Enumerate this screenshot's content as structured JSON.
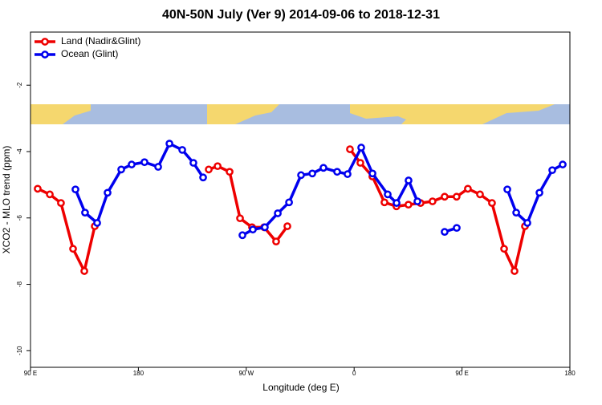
{
  "chart_data": {
    "type": "line",
    "title": "40N-50N July (Ver 9)   2014-09-06 to 2018-12-31",
    "xlabel": "Longitude (deg E)",
    "ylabel": "XCO2 - MLO trend (ppm)",
    "xlim": [
      90,
      540
    ],
    "ylim": [
      -10.5,
      -0.4
    ],
    "xticks": [
      {
        "value": 90,
        "label": "90 E"
      },
      180,
      {
        "value": 270,
        "label": "90 W"
      },
      {
        "value": 360,
        "label": "0"
      },
      {
        "value": 450,
        "label": "90 E"
      },
      {
        "value": 540,
        "label": "180"
      }
    ],
    "yticks": [
      -10,
      -8,
      -6,
      -4,
      -2
    ],
    "legend": "top-left",
    "series": [
      {
        "name": "Land (Nadir&Glint)",
        "color": "#ee0000",
        "x": [
          96.0,
          106.1,
          115.4,
          125.5,
          134.9,
          143.6,
          null,
          238.7,
          246.1,
          256.1,
          264.8,
          274.8,
          284.9,
          294.9,
          304.3,
          null,
          356.5,
          365.2,
          375.2,
          385.3,
          395.3,
          405.3,
          415.4,
          425.4,
          435.5,
          445.5,
          454.9,
          465.0,
          475.0,
          485.1,
          493.8,
          502.5
        ],
        "values": [
          -5.12,
          -5.29,
          -5.55,
          -6.93,
          -7.6,
          -6.25,
          null,
          -4.54,
          -4.44,
          -4.61,
          -6.01,
          -6.28,
          -6.28,
          -6.71,
          -6.25,
          null,
          -3.93,
          -4.34,
          -4.75,
          -5.53,
          -5.65,
          -5.6,
          -5.55,
          -5.5,
          -5.36,
          -5.36,
          -5.12,
          -5.29,
          -5.55,
          -6.93,
          -7.6,
          -6.25
        ]
      },
      {
        "name": "Ocean (Glint)",
        "color": "#0000ee",
        "x": [
          127.5,
          135.5,
          145.6,
          154.3,
          165.7,
          174.4,
          185.1,
          196.5,
          205.9,
          216.6,
          225.9,
          234.0,
          null,
          266.8,
          275.5,
          285.5,
          296.3,
          305.7,
          315.7,
          325.1,
          334.4,
          345.8,
          354.5,
          365.9,
          375.3,
          388.0,
          395.4,
          405.4,
          412.8,
          null,
          435.5,
          445.6,
          null,
          487.8,
          495.2,
          504.5,
          514.6,
          525.3,
          534.0
        ],
        "values": [
          -5.14,
          -5.84,
          -6.15,
          -5.24,
          -4.54,
          -4.39,
          -4.32,
          -4.46,
          -3.76,
          -3.95,
          -4.34,
          -4.78,
          null,
          -6.52,
          -6.35,
          -6.28,
          -5.86,
          -5.53,
          -4.71,
          -4.66,
          -4.49,
          -4.61,
          -4.68,
          -3.88,
          -4.66,
          -5.29,
          -5.55,
          -4.87,
          -5.5,
          null,
          -6.42,
          -6.3,
          null,
          -5.14,
          -5.84,
          -6.15,
          -5.24,
          -4.56,
          -4.39
        ]
      }
    ]
  }
}
